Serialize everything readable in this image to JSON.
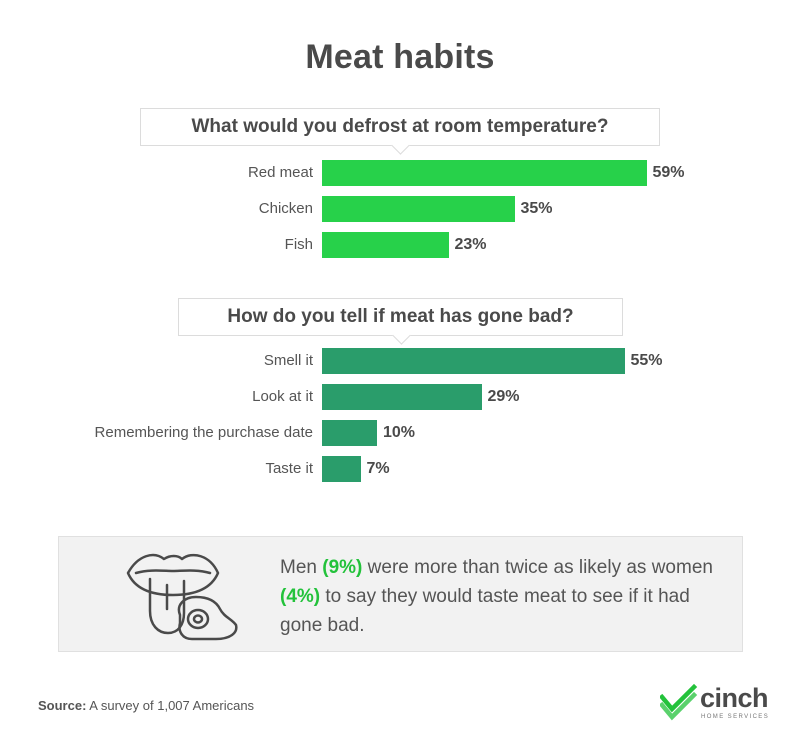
{
  "title": "Meat habits",
  "colors": {
    "chart1_bar": "#27d14a",
    "chart2_bar": "#2a9d6b",
    "highlight": "#23c23b"
  },
  "chart_data": [
    {
      "type": "bar",
      "orientation": "horizontal",
      "title": "What would you defrost at room temperature?",
      "categories": [
        "Red meat",
        "Chicken",
        "Fish"
      ],
      "values": [
        59,
        35,
        23
      ],
      "value_labels": [
        "59%",
        "35%",
        "23%"
      ],
      "unit": "%"
    },
    {
      "type": "bar",
      "orientation": "horizontal",
      "title": "How do you tell if meat has gone bad?",
      "categories": [
        "Smell it",
        "Look at it",
        "Remembering the purchase date",
        "Taste it"
      ],
      "values": [
        55,
        29,
        10,
        7
      ],
      "value_labels": [
        "55%",
        "29%",
        "10%",
        "7%"
      ],
      "unit": "%"
    }
  ],
  "callout": {
    "icon": "mouth-tongue-and-steak-icon",
    "text_1": "Men ",
    "men_pct": "(9%)",
    "text_2": " were more than twice as likely as women ",
    "women_pct": "(4%)",
    "text_3": " to say they would taste meat to see if it had gone bad."
  },
  "source": {
    "label": "Source:",
    "text": " A survey of 1,007 Americans"
  },
  "logo": {
    "word": "cinch",
    "tagline": "HOME SERVICES"
  }
}
